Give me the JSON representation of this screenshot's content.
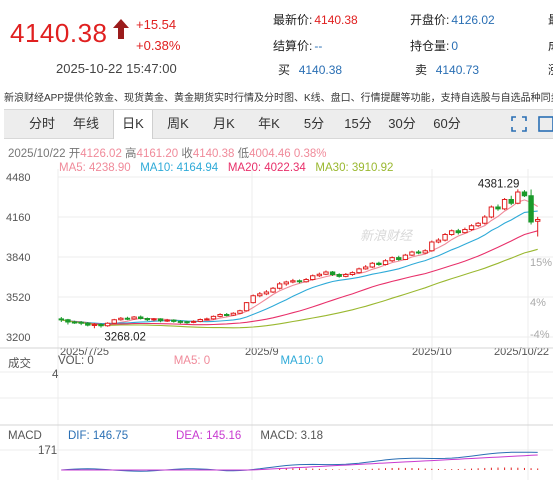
{
  "quote": {
    "price": "4140.38",
    "change": "+15.54",
    "change_pct": "+0.38%",
    "datetime": "2025-10-22 15:47:00",
    "fields": [
      {
        "label": "最新价:",
        "value": "4140.38",
        "tone": "red"
      },
      {
        "label": "开盘价:",
        "value": "4126.02",
        "tone": "blue"
      },
      {
        "label": "结算价:",
        "value": "--",
        "tone": "blue"
      },
      {
        "label": "持仓量:",
        "value": "0",
        "tone": "blue"
      },
      {
        "label": "买",
        "value": "4140.38",
        "tone": "blue"
      },
      {
        "label": "卖",
        "value": "4140.73",
        "tone": "blue"
      }
    ],
    "cut_labels": [
      "最",
      "成",
      "涨"
    ]
  },
  "promo_text": "新浪财经APP提供伦敦金、现货黄金、黄金期货实时行情及分时图、K线、盘口、行情提醒等功能，支持自选股与自选品种同步",
  "tabs": [
    "分时",
    "年线",
    "日K",
    "周K",
    "月K",
    "年K",
    "5分",
    "15分",
    "30分",
    "60分"
  ],
  "active_tab": "日K",
  "kline": {
    "date": "2025/10/22",
    "open_label": "开",
    "open": "4126.02",
    "high_label": "高",
    "high": "4161.20",
    "close_label": "收",
    "close": "4140.38",
    "low_label": "低",
    "low": "4004.46",
    "pct": "0.38%",
    "ma5": "MA5: 4238.90",
    "ma10": "MA10: 4164.94",
    "ma20": "MA20: 4022.34",
    "ma30": "MA30: 3910.92",
    "max_label": "4381.29",
    "min_label": "3268.02",
    "y_ticks": [
      "4480",
      "4160",
      "3840",
      "3520",
      "3200"
    ],
    "right_pcts": [
      "15%",
      "4%",
      "-4%"
    ],
    "x_ticks": [
      "2025/7/25",
      "2025/9",
      "2025/10",
      "2025/10/22"
    ],
    "watermark": "新浪财经"
  },
  "volume": {
    "label": "成交",
    "vol": "VOL: 0",
    "ma5": "MA5: 0",
    "ma10": "MA10: 0",
    "axis": "4"
  },
  "macd": {
    "label": "MACD",
    "dif": "DIF: 146.75",
    "dea": "DEA: 145.16",
    "macd": "MACD: 3.18",
    "axis": "171"
  },
  "colors": {
    "up": "#e02020",
    "down": "#1a9a2a",
    "ma5": "#f08a9a",
    "ma10": "#2eaad8",
    "ma20": "#e8306a",
    "ma30": "#9ab830",
    "blue": "#2a6fb4"
  },
  "chart_data": {
    "type": "candlestick",
    "title": "",
    "xlabel": "",
    "ylabel": "",
    "ylim": [
      3200,
      4480
    ],
    "x": [
      "2025/7/25",
      "2025/9",
      "2025/10",
      "2025/10/22"
    ],
    "candles": [
      [
        3345,
        3338,
        3360,
        3320
      ],
      [
        3338,
        3320,
        3345,
        3300
      ],
      [
        3320,
        3318,
        3330,
        3305
      ],
      [
        3318,
        3310,
        3328,
        3295
      ],
      [
        3310,
        3295,
        3320,
        3285
      ],
      [
        3295,
        3300,
        3312,
        3270
      ],
      [
        3300,
        3290,
        3310,
        3275
      ],
      [
        3290,
        3310,
        3318,
        3282
      ],
      [
        3310,
        3338,
        3345,
        3305
      ],
      [
        3338,
        3350,
        3360,
        3330
      ],
      [
        3350,
        3345,
        3362,
        3335
      ],
      [
        3345,
        3360,
        3368,
        3338
      ],
      [
        3360,
        3348,
        3372,
        3340
      ],
      [
        3348,
        3338,
        3356,
        3328
      ],
      [
        3338,
        3345,
        3352,
        3325
      ],
      [
        3345,
        3330,
        3350,
        3318
      ],
      [
        3330,
        3335,
        3345,
        3320
      ],
      [
        3335,
        3325,
        3342,
        3315
      ],
      [
        3325,
        3322,
        3335,
        3308
      ],
      [
        3322,
        3318,
        3330,
        3305
      ],
      [
        3318,
        3325,
        3334,
        3310
      ],
      [
        3325,
        3340,
        3348,
        3318
      ],
      [
        3340,
        3345,
        3355,
        3332
      ],
      [
        3345,
        3365,
        3372,
        3338
      ],
      [
        3365,
        3380,
        3390,
        3358
      ],
      [
        3380,
        3375,
        3392,
        3365
      ],
      [
        3375,
        3390,
        3398,
        3368
      ],
      [
        3390,
        3410,
        3418,
        3384
      ],
      [
        3410,
        3475,
        3480,
        3405
      ],
      [
        3475,
        3530,
        3540,
        3468
      ],
      [
        3530,
        3545,
        3560,
        3518
      ],
      [
        3545,
        3560,
        3575,
        3535
      ],
      [
        3560,
        3590,
        3600,
        3552
      ],
      [
        3590,
        3625,
        3640,
        3580
      ],
      [
        3625,
        3640,
        3650,
        3610
      ],
      [
        3640,
        3650,
        3665,
        3630
      ],
      [
        3650,
        3642,
        3660,
        3630
      ],
      [
        3642,
        3660,
        3672,
        3635
      ],
      [
        3660,
        3690,
        3700,
        3652
      ],
      [
        3690,
        3702,
        3715,
        3680
      ],
      [
        3702,
        3720,
        3732,
        3695
      ],
      [
        3720,
        3700,
        3728,
        3688
      ],
      [
        3700,
        3685,
        3710,
        3675
      ],
      [
        3685,
        3700,
        3712,
        3678
      ],
      [
        3700,
        3715,
        3725,
        3690
      ],
      [
        3715,
        3745,
        3755,
        3708
      ],
      [
        3745,
        3760,
        3775,
        3738
      ],
      [
        3760,
        3790,
        3800,
        3752
      ],
      [
        3790,
        3780,
        3802,
        3770
      ],
      [
        3780,
        3810,
        3822,
        3772
      ],
      [
        3810,
        3835,
        3845,
        3800
      ],
      [
        3835,
        3820,
        3850,
        3810
      ],
      [
        3820,
        3855,
        3865,
        3815
      ],
      [
        3855,
        3880,
        3890,
        3848
      ],
      [
        3880,
        3872,
        3895,
        3862
      ],
      [
        3872,
        3890,
        3902,
        3865
      ],
      [
        3890,
        3960,
        3972,
        3882
      ],
      [
        3960,
        3975,
        3990,
        3950
      ],
      [
        3975,
        4020,
        4032,
        3965
      ],
      [
        4020,
        4050,
        4060,
        4010
      ],
      [
        4050,
        4035,
        4065,
        4020
      ],
      [
        4035,
        4060,
        4075,
        4028
      ],
      [
        4060,
        4090,
        4102,
        4050
      ],
      [
        4090,
        4110,
        4120,
        4080
      ],
      [
        4110,
        4160,
        4175,
        4100
      ],
      [
        4160,
        4240,
        4252,
        4150
      ],
      [
        4240,
        4225,
        4260,
        4210
      ],
      [
        4225,
        4300,
        4312,
        4215
      ],
      [
        4300,
        4270,
        4330,
        4255
      ],
      [
        4270,
        4360,
        4381,
        4262
      ],
      [
        4360,
        4330,
        4375,
        4320
      ],
      [
        4330,
        4120,
        4380,
        4100
      ],
      [
        4126,
        4140,
        4161,
        4004
      ]
    ],
    "ma_series": [
      {
        "name": "MA5",
        "values": [
          4238.9
        ]
      },
      {
        "name": "MA10",
        "values": [
          4164.94
        ]
      },
      {
        "name": "MA20",
        "values": [
          4022.34
        ]
      },
      {
        "name": "MA30",
        "values": [
          3910.92
        ]
      }
    ]
  }
}
